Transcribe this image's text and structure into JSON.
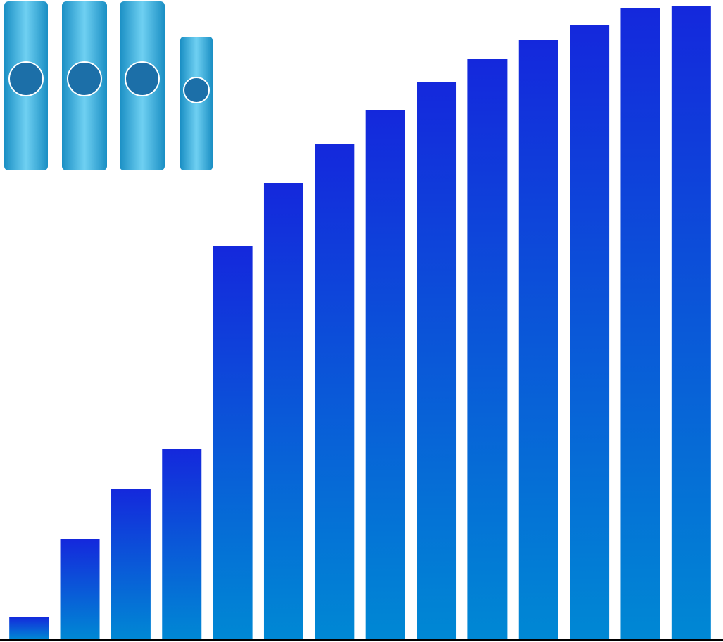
{
  "chart_data": {
    "type": "bar",
    "categories": [
      null,
      null,
      null,
      null,
      null,
      null,
      null,
      null,
      null,
      null,
      null,
      null,
      null,
      null
    ],
    "values": [
      32,
      142,
      214,
      270,
      558,
      648,
      704,
      752,
      792,
      824,
      851,
      872,
      896,
      899
    ],
    "ylim": [
      0,
      900
    ]
  }
}
